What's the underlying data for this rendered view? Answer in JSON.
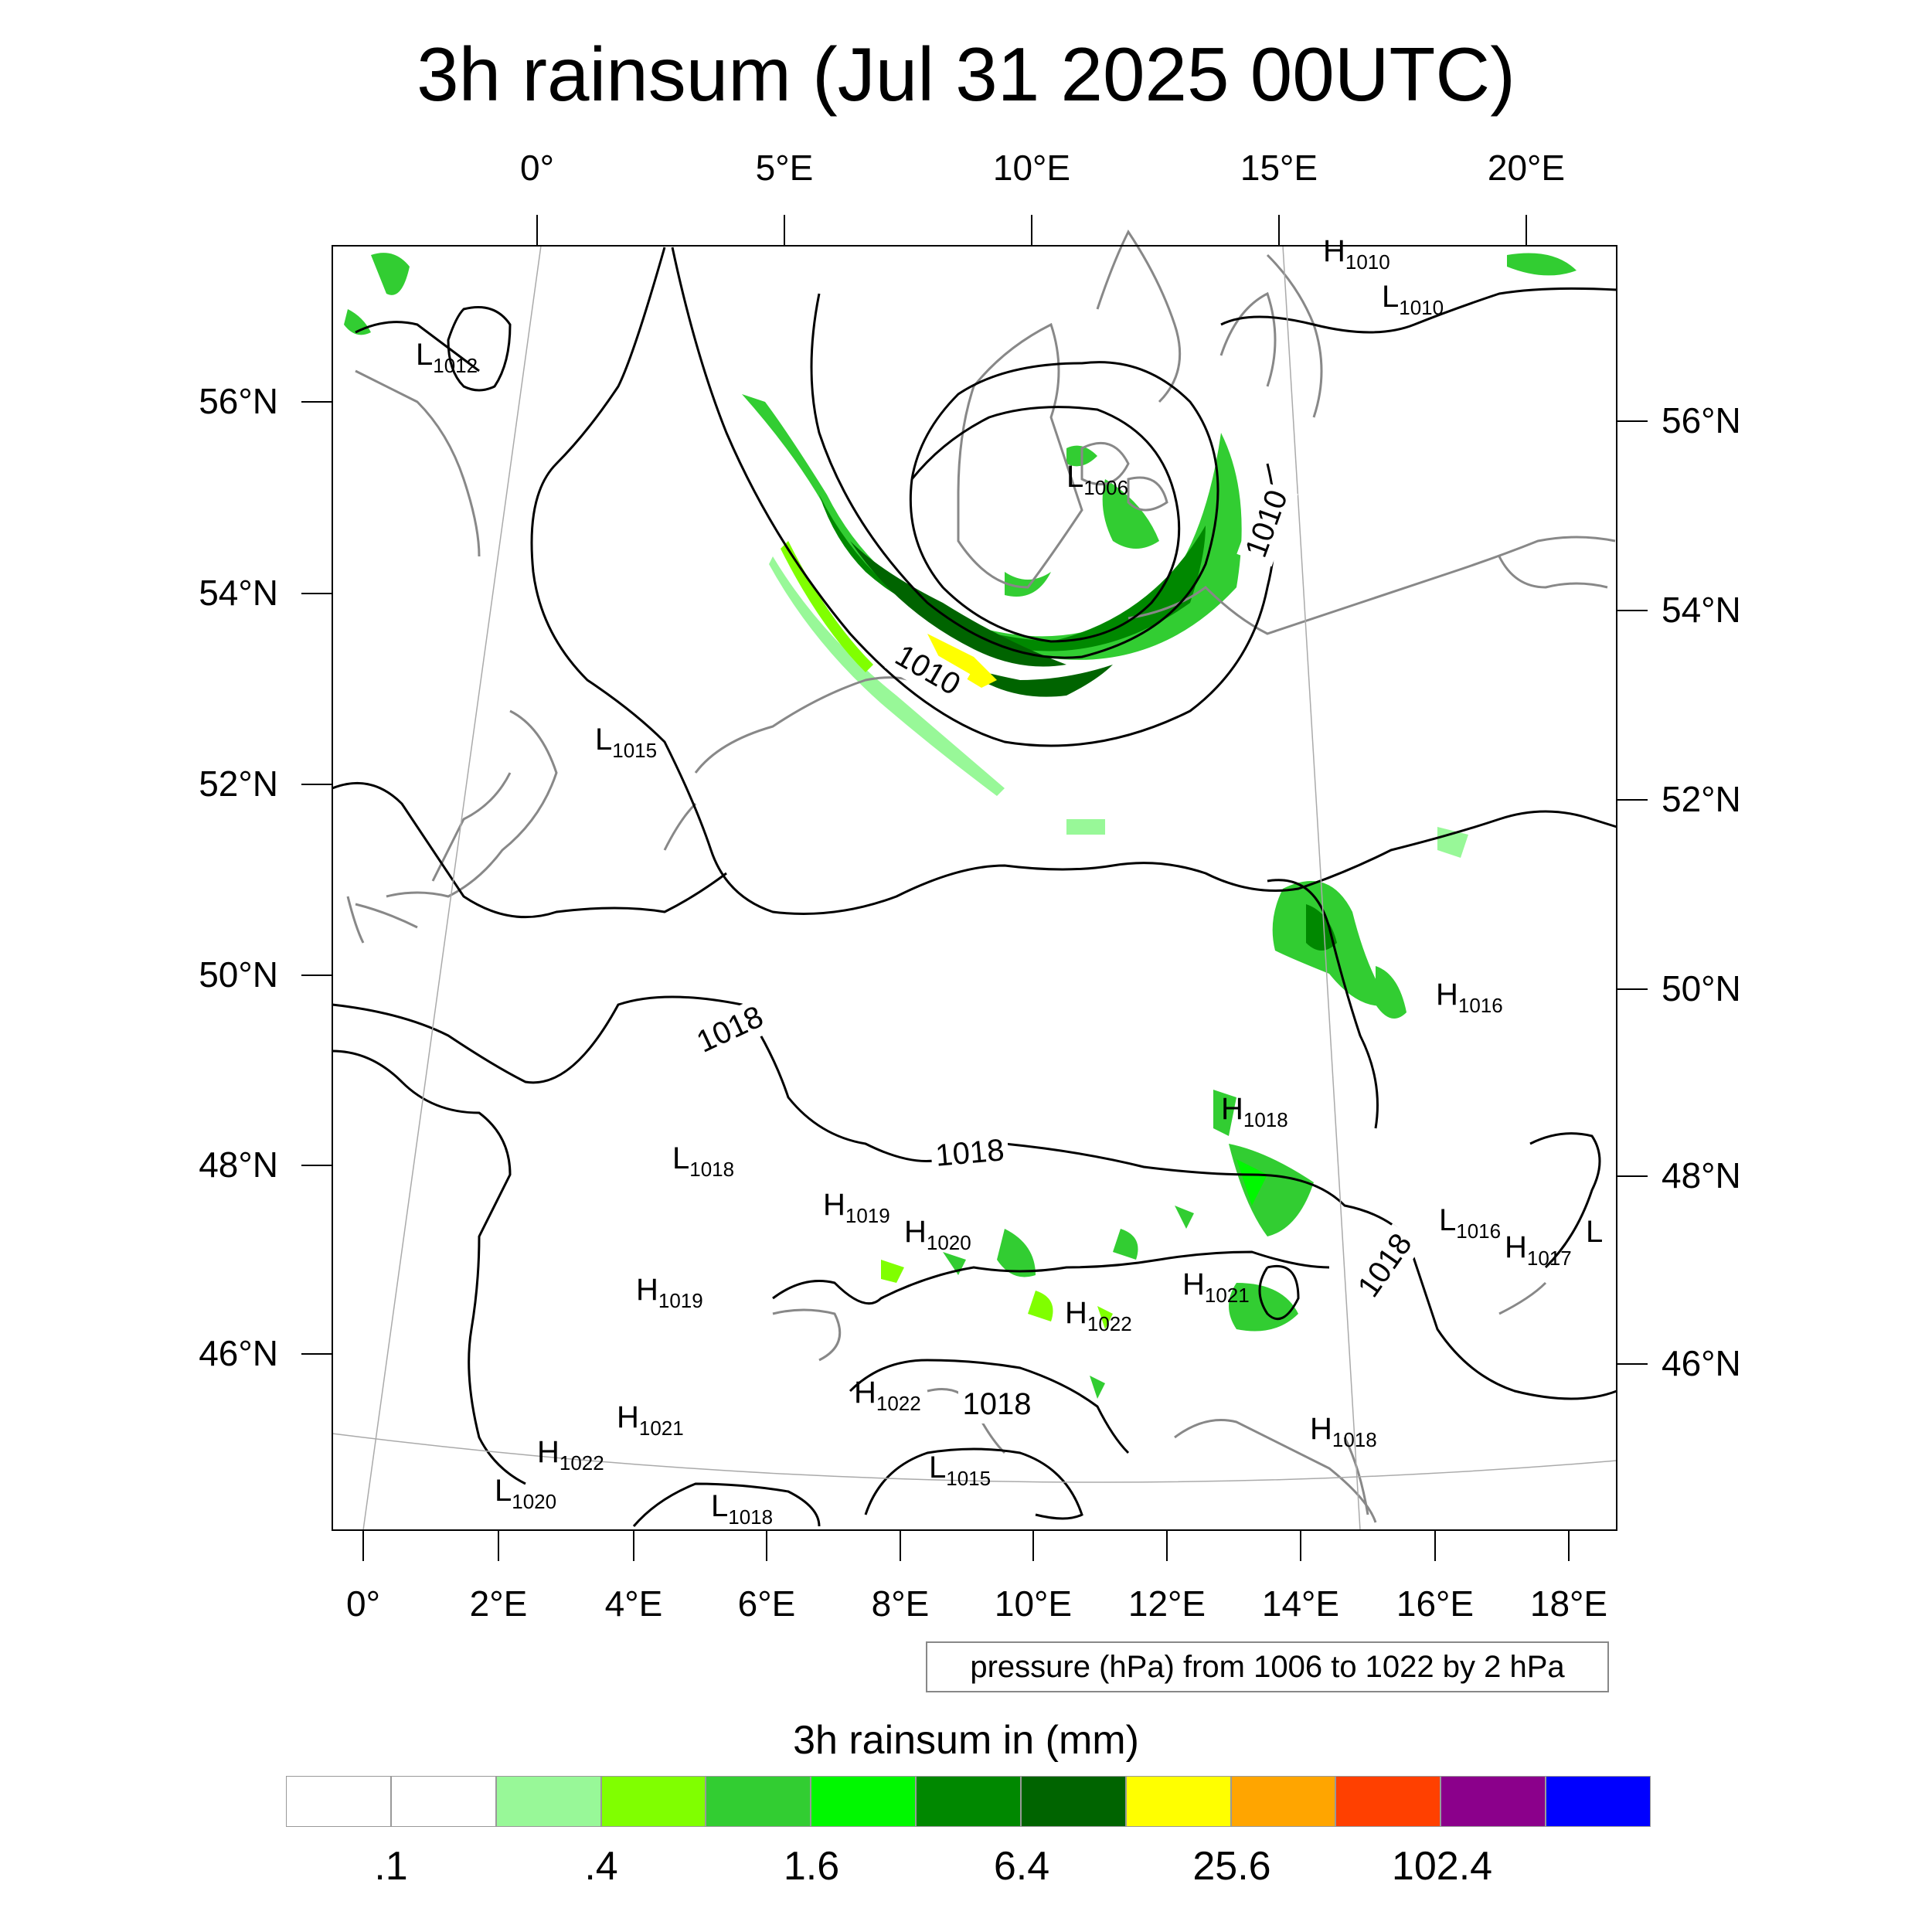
{
  "title": "3h rainsum (Jul 31 2025 00UTC)",
  "top_lon_labels": [
    "0°",
    "5°E",
    "10°E",
    "15°E",
    "20°E"
  ],
  "bottom_lon_labels": [
    "0°",
    "2°E",
    "4°E",
    "6°E",
    "8°E",
    "10°E",
    "12°E",
    "14°E",
    "16°E",
    "18°E"
  ],
  "left_lat_labels": [
    "56°N",
    "54°N",
    "52°N",
    "50°N",
    "48°N",
    "46°N"
  ],
  "right_lat_labels": [
    "56°N",
    "54°N",
    "52°N",
    "50°N",
    "48°N",
    "46°N"
  ],
  "pressure_note": "pressure (hPa) from 1006 to 1022 by 2 hPa",
  "colorbar": {
    "title": "3h rainsum in (mm)",
    "colors": [
      "#ffffff",
      "#ffffff",
      "#98f898",
      "#80ff00",
      "#32cd32",
      "#00f800",
      "#008800",
      "#006400",
      "#ffff00",
      "#ffa500",
      "#ff4000",
      "#8b008b",
      "#0000ff"
    ],
    "labels": [
      ".1",
      ".4",
      "1.6",
      "6.4",
      "25.6",
      "102.4"
    ]
  },
  "pressure_centers": [
    {
      "type": "H",
      "value": "1010"
    },
    {
      "type": "L",
      "value": "1010"
    },
    {
      "type": "L",
      "value": "1012"
    },
    {
      "type": "L",
      "value": "1006"
    },
    {
      "type": "L",
      "value": "1015"
    },
    {
      "type": "H",
      "value": "1016"
    },
    {
      "type": "H",
      "value": "1018"
    },
    {
      "type": "L",
      "value": "1018"
    },
    {
      "type": "H",
      "value": "1019"
    },
    {
      "type": "H",
      "value": "1020"
    },
    {
      "type": "L",
      "value": "1016"
    },
    {
      "type": "H",
      "value": "1017"
    },
    {
      "type": "L",
      "value": ""
    },
    {
      "type": "H",
      "value": "1019"
    },
    {
      "type": "H",
      "value": "1021"
    },
    {
      "type": "H",
      "value": "1022"
    },
    {
      "type": "H",
      "value": "1021"
    },
    {
      "type": "H",
      "value": "1022"
    },
    {
      "type": "H",
      "value": "1022"
    },
    {
      "type": "L",
      "value": "1020"
    },
    {
      "type": "L",
      "value": "1018"
    },
    {
      "type": "L",
      "value": "1015"
    },
    {
      "type": "H",
      "value": "1018"
    }
  ],
  "contour_labels": [
    "1010",
    "1010",
    "1018",
    "1018",
    "1018",
    "1018"
  ]
}
